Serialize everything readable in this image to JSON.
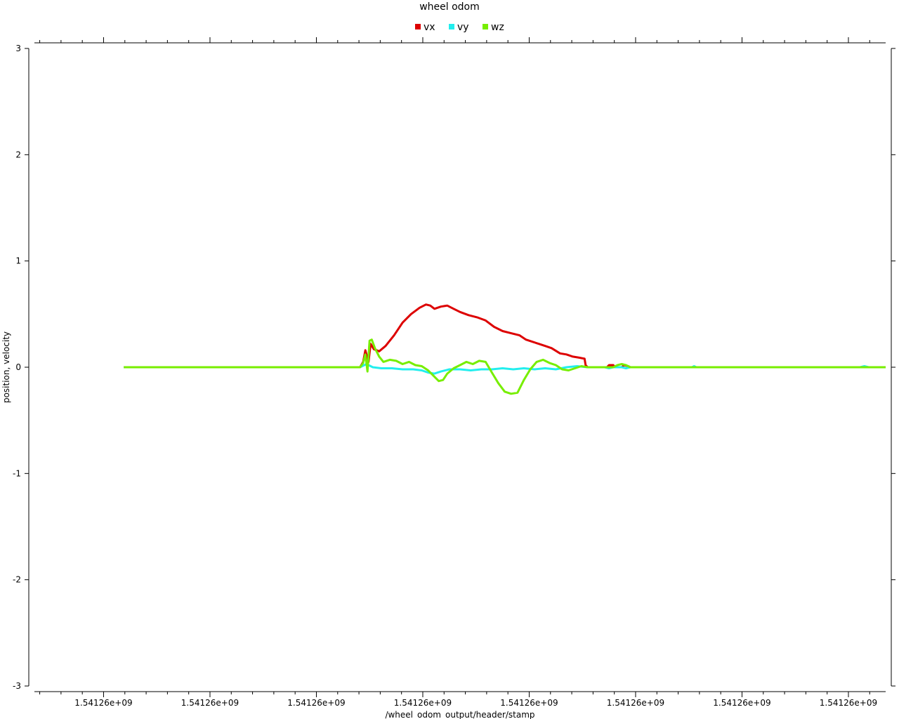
{
  "chart_data": {
    "type": "line",
    "title": "wheel odom",
    "xlabel": "/wheel_odom_output/header/stamp",
    "ylabel": "position, velocity",
    "xlim": [
      0,
      40
    ],
    "ylim": [
      -3,
      3
    ],
    "x_tick_labels": [
      {
        "x": 3.25,
        "label": "1.54126e+09"
      },
      {
        "x": 8.25,
        "label": "1.54126e+09"
      },
      {
        "x": 13.25,
        "label": "1.54126e+09"
      },
      {
        "x": 18.25,
        "label": "1.54126e+09"
      },
      {
        "x": 23.25,
        "label": "1.54126e+09"
      },
      {
        "x": 28.25,
        "label": "1.54126e+09"
      },
      {
        "x": 33.25,
        "label": "1.54126e+09"
      },
      {
        "x": 38.25,
        "label": "1.54126e+09"
      }
    ],
    "y_ticks": [
      -3,
      -2,
      -1,
      0,
      1,
      2,
      3
    ],
    "legend_position": "top-center",
    "grid": false,
    "series": [
      {
        "name": "vx",
        "color": "#dd0000",
        "points": [
          [
            4.2,
            0
          ],
          [
            15.3,
            0
          ],
          [
            15.45,
            0.05
          ],
          [
            15.55,
            0.16
          ],
          [
            15.7,
            0.05
          ],
          [
            15.8,
            0.22
          ],
          [
            15.95,
            0.17
          ],
          [
            16.2,
            0.15
          ],
          [
            16.5,
            0.2
          ],
          [
            16.9,
            0.3
          ],
          [
            17.3,
            0.42
          ],
          [
            17.7,
            0.5
          ],
          [
            18.1,
            0.56
          ],
          [
            18.4,
            0.59
          ],
          [
            18.6,
            0.58
          ],
          [
            18.8,
            0.55
          ],
          [
            19.1,
            0.57
          ],
          [
            19.4,
            0.58
          ],
          [
            19.7,
            0.55
          ],
          [
            20.0,
            0.52
          ],
          [
            20.4,
            0.49
          ],
          [
            20.8,
            0.47
          ],
          [
            21.2,
            0.44
          ],
          [
            21.6,
            0.38
          ],
          [
            22.0,
            0.34
          ],
          [
            22.4,
            0.32
          ],
          [
            22.8,
            0.3
          ],
          [
            23.1,
            0.26
          ],
          [
            23.4,
            0.24
          ],
          [
            23.7,
            0.22
          ],
          [
            24.0,
            0.2
          ],
          [
            24.3,
            0.18
          ],
          [
            24.7,
            0.13
          ],
          [
            25.0,
            0.12
          ],
          [
            25.3,
            0.1
          ],
          [
            25.6,
            0.09
          ],
          [
            25.85,
            0.08
          ],
          [
            25.9,
            0.02
          ],
          [
            26.0,
            0
          ],
          [
            26.9,
            0
          ],
          [
            27.0,
            0.02
          ],
          [
            27.2,
            0.02
          ],
          [
            27.3,
            0
          ],
          [
            27.6,
            0
          ],
          [
            27.7,
            0.02
          ],
          [
            27.9,
            0.01
          ],
          [
            28.0,
            0
          ],
          [
            40.0,
            0
          ]
        ]
      },
      {
        "name": "vy",
        "color": "#22eeee",
        "points": [
          [
            4.2,
            0
          ],
          [
            15.3,
            0
          ],
          [
            15.6,
            0.03
          ],
          [
            15.9,
            0
          ],
          [
            16.3,
            -0.01
          ],
          [
            16.8,
            -0.01
          ],
          [
            17.3,
            -0.02
          ],
          [
            17.8,
            -0.02
          ],
          [
            18.2,
            -0.03
          ],
          [
            18.5,
            -0.05
          ],
          [
            18.8,
            -0.06
          ],
          [
            19.1,
            -0.04
          ],
          [
            19.5,
            -0.02
          ],
          [
            20.0,
            -0.02
          ],
          [
            20.5,
            -0.03
          ],
          [
            21.0,
            -0.02
          ],
          [
            21.5,
            -0.02
          ],
          [
            22.0,
            -0.01
          ],
          [
            22.5,
            -0.02
          ],
          [
            23.0,
            -0.01
          ],
          [
            23.5,
            -0.02
          ],
          [
            24.0,
            -0.01
          ],
          [
            24.5,
            -0.02
          ],
          [
            25.0,
            0
          ],
          [
            25.5,
            0.01
          ],
          [
            26.0,
            0
          ],
          [
            26.8,
            0
          ],
          [
            27.0,
            -0.01
          ],
          [
            27.2,
            0
          ],
          [
            27.6,
            0
          ],
          [
            27.8,
            -0.01
          ],
          [
            28.0,
            0
          ],
          [
            30.9,
            0
          ],
          [
            31.0,
            0.01
          ],
          [
            31.1,
            0
          ],
          [
            38.8,
            0
          ],
          [
            39.0,
            0.01
          ],
          [
            39.2,
            0
          ],
          [
            40.0,
            0
          ]
        ]
      },
      {
        "name": "wz",
        "color": "#77ee00",
        "points": [
          [
            4.2,
            0
          ],
          [
            15.3,
            0
          ],
          [
            15.45,
            0.04
          ],
          [
            15.55,
            0.12
          ],
          [
            15.65,
            -0.04
          ],
          [
            15.75,
            0.25
          ],
          [
            15.85,
            0.26
          ],
          [
            16.0,
            0.18
          ],
          [
            16.2,
            0.1
          ],
          [
            16.4,
            0.05
          ],
          [
            16.7,
            0.07
          ],
          [
            17.0,
            0.06
          ],
          [
            17.3,
            0.03
          ],
          [
            17.6,
            0.05
          ],
          [
            17.9,
            0.02
          ],
          [
            18.2,
            0.01
          ],
          [
            18.5,
            -0.03
          ],
          [
            18.8,
            -0.09
          ],
          [
            19.0,
            -0.13
          ],
          [
            19.2,
            -0.12
          ],
          [
            19.4,
            -0.06
          ],
          [
            19.7,
            -0.01
          ],
          [
            20.0,
            0.02
          ],
          [
            20.3,
            0.05
          ],
          [
            20.6,
            0.03
          ],
          [
            20.9,
            0.06
          ],
          [
            21.2,
            0.05
          ],
          [
            21.5,
            -0.05
          ],
          [
            21.8,
            -0.15
          ],
          [
            22.1,
            -0.23
          ],
          [
            22.4,
            -0.25
          ],
          [
            22.7,
            -0.24
          ],
          [
            23.0,
            -0.12
          ],
          [
            23.3,
            -0.02
          ],
          [
            23.6,
            0.05
          ],
          [
            23.9,
            0.07
          ],
          [
            24.2,
            0.04
          ],
          [
            24.5,
            0.02
          ],
          [
            24.8,
            -0.02
          ],
          [
            25.1,
            -0.03
          ],
          [
            25.4,
            -0.01
          ],
          [
            25.7,
            0.01
          ],
          [
            26.0,
            0
          ],
          [
            27.2,
            0
          ],
          [
            27.4,
            0.02
          ],
          [
            27.6,
            0.03
          ],
          [
            27.8,
            0.02
          ],
          [
            28.0,
            0
          ],
          [
            40.0,
            0
          ]
        ]
      }
    ]
  }
}
